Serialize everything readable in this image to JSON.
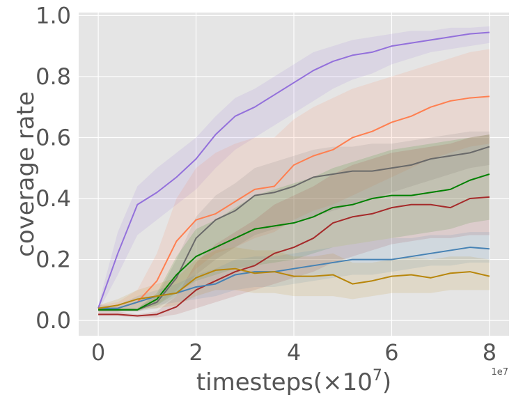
{
  "chart_data": {
    "type": "line",
    "title": "",
    "xlabel_main": "timesteps(×10",
    "xlabel_exp": "7",
    "xlabel_close": ")",
    "ylabel": "coverage rate",
    "x_offset_label": "1e7",
    "xlim": [
      -0.4,
      8.4
    ],
    "ylim": [
      -0.05,
      1.01
    ],
    "xticks": [
      0,
      2,
      4,
      6,
      8
    ],
    "xtick_labels": [
      "0",
      "2",
      "4",
      "6",
      "8"
    ],
    "yticks": [
      0.0,
      0.2,
      0.4,
      0.6,
      0.8,
      1.0
    ],
    "ytick_labels": [
      "0.0",
      "0.2",
      "0.4",
      "0.6",
      "0.8",
      "1.0"
    ],
    "grid": true,
    "legend": "none",
    "x": [
      0,
      0.4,
      0.8,
      1.2,
      1.6,
      2.0,
      2.4,
      2.8,
      3.2,
      3.6,
      4.0,
      4.4,
      4.8,
      5.2,
      5.6,
      6.0,
      6.4,
      6.8,
      7.2,
      7.6,
      8.0
    ],
    "series": [
      {
        "color": "#9370db",
        "values": [
          0.04,
          0.22,
          0.38,
          0.42,
          0.47,
          0.53,
          0.61,
          0.67,
          0.7,
          0.74,
          0.78,
          0.82,
          0.85,
          0.87,
          0.88,
          0.9,
          0.91,
          0.92,
          0.93,
          0.94,
          0.945
        ],
        "lower": [
          0.03,
          0.15,
          0.28,
          0.33,
          0.38,
          0.43,
          0.5,
          0.56,
          0.6,
          0.64,
          0.68,
          0.72,
          0.76,
          0.79,
          0.81,
          0.84,
          0.86,
          0.88,
          0.89,
          0.9,
          0.91
        ],
        "upper": [
          0.05,
          0.29,
          0.44,
          0.5,
          0.55,
          0.6,
          0.67,
          0.73,
          0.76,
          0.8,
          0.84,
          0.88,
          0.9,
          0.92,
          0.93,
          0.94,
          0.95,
          0.95,
          0.96,
          0.96,
          0.965
        ]
      },
      {
        "color": "#ff7f50",
        "values": [
          0.04,
          0.04,
          0.06,
          0.13,
          0.26,
          0.33,
          0.35,
          0.39,
          0.43,
          0.44,
          0.51,
          0.54,
          0.56,
          0.6,
          0.62,
          0.65,
          0.67,
          0.7,
          0.72,
          0.73,
          0.735
        ],
        "lower": [
          0.03,
          0.03,
          0.03,
          0.05,
          0.1,
          0.17,
          0.22,
          0.24,
          0.27,
          0.29,
          0.33,
          0.36,
          0.38,
          0.41,
          0.44,
          0.47,
          0.5,
          0.53,
          0.55,
          0.57,
          0.58
        ],
        "upper": [
          0.05,
          0.06,
          0.1,
          0.22,
          0.4,
          0.5,
          0.55,
          0.58,
          0.6,
          0.6,
          0.66,
          0.7,
          0.73,
          0.76,
          0.78,
          0.8,
          0.82,
          0.84,
          0.86,
          0.88,
          0.89
        ]
      },
      {
        "color": "#696969",
        "values": [
          0.035,
          0.035,
          0.035,
          0.06,
          0.14,
          0.27,
          0.33,
          0.36,
          0.41,
          0.42,
          0.44,
          0.47,
          0.48,
          0.49,
          0.49,
          0.5,
          0.51,
          0.53,
          0.54,
          0.55,
          0.57
        ],
        "lower": [
          0.03,
          0.03,
          0.03,
          0.04,
          0.08,
          0.15,
          0.2,
          0.24,
          0.28,
          0.3,
          0.32,
          0.34,
          0.36,
          0.38,
          0.4,
          0.42,
          0.44,
          0.46,
          0.48,
          0.5,
          0.51
        ],
        "upper": [
          0.04,
          0.04,
          0.04,
          0.08,
          0.2,
          0.34,
          0.41,
          0.45,
          0.5,
          0.52,
          0.54,
          0.56,
          0.57,
          0.57,
          0.58,
          0.58,
          0.59,
          0.6,
          0.61,
          0.62,
          0.62
        ]
      },
      {
        "color": "#008000",
        "values": [
          0.035,
          0.035,
          0.035,
          0.07,
          0.15,
          0.21,
          0.24,
          0.27,
          0.3,
          0.31,
          0.32,
          0.34,
          0.37,
          0.38,
          0.4,
          0.41,
          0.41,
          0.42,
          0.43,
          0.46,
          0.48
        ],
        "lower": [
          0.03,
          0.03,
          0.03,
          0.05,
          0.09,
          0.13,
          0.15,
          0.17,
          0.18,
          0.19,
          0.2,
          0.22,
          0.24,
          0.25,
          0.26,
          0.27,
          0.28,
          0.29,
          0.3,
          0.32,
          0.33
        ],
        "upper": [
          0.04,
          0.04,
          0.04,
          0.09,
          0.21,
          0.3,
          0.33,
          0.37,
          0.41,
          0.43,
          0.45,
          0.47,
          0.5,
          0.52,
          0.54,
          0.56,
          0.57,
          0.58,
          0.59,
          0.6,
          0.61
        ]
      },
      {
        "color": "#a52a2a",
        "values": [
          0.02,
          0.02,
          0.015,
          0.02,
          0.045,
          0.1,
          0.13,
          0.16,
          0.18,
          0.22,
          0.24,
          0.27,
          0.32,
          0.34,
          0.35,
          0.37,
          0.38,
          0.38,
          0.37,
          0.4,
          0.405
        ],
        "lower": [
          0.015,
          0.015,
          0.01,
          0.01,
          0.02,
          0.04,
          0.06,
          0.08,
          0.1,
          0.12,
          0.14,
          0.16,
          0.19,
          0.21,
          0.23,
          0.25,
          0.26,
          0.27,
          0.27,
          0.28,
          0.28
        ],
        "upper": [
          0.03,
          0.03,
          0.02,
          0.03,
          0.08,
          0.19,
          0.25,
          0.29,
          0.33,
          0.38,
          0.41,
          0.44,
          0.48,
          0.51,
          0.53,
          0.55,
          0.56,
          0.57,
          0.58,
          0.6,
          0.61
        ]
      },
      {
        "color": "#4682b4",
        "values": [
          0.04,
          0.04,
          0.06,
          0.08,
          0.09,
          0.11,
          0.12,
          0.15,
          0.16,
          0.16,
          0.17,
          0.18,
          0.19,
          0.2,
          0.2,
          0.2,
          0.21,
          0.22,
          0.23,
          0.24,
          0.235
        ],
        "lower": [
          0.03,
          0.03,
          0.04,
          0.05,
          0.06,
          0.07,
          0.08,
          0.1,
          0.11,
          0.11,
          0.12,
          0.13,
          0.14,
          0.15,
          0.15,
          0.16,
          0.17,
          0.18,
          0.18,
          0.19,
          0.19
        ],
        "upper": [
          0.05,
          0.05,
          0.08,
          0.1,
          0.12,
          0.15,
          0.17,
          0.2,
          0.21,
          0.21,
          0.22,
          0.23,
          0.24,
          0.25,
          0.26,
          0.27,
          0.27,
          0.28,
          0.28,
          0.29,
          0.29
        ]
      },
      {
        "color": "#b8860b",
        "values": [
          0.04,
          0.05,
          0.07,
          0.08,
          0.09,
          0.14,
          0.165,
          0.17,
          0.155,
          0.16,
          0.145,
          0.145,
          0.15,
          0.12,
          0.13,
          0.145,
          0.15,
          0.14,
          0.155,
          0.16,
          0.145
        ],
        "lower": [
          0.03,
          0.03,
          0.04,
          0.04,
          0.05,
          0.08,
          0.1,
          0.1,
          0.09,
          0.09,
          0.08,
          0.08,
          0.08,
          0.07,
          0.08,
          0.09,
          0.09,
          0.09,
          0.1,
          0.1,
          0.1
        ],
        "upper": [
          0.05,
          0.07,
          0.1,
          0.12,
          0.14,
          0.2,
          0.23,
          0.24,
          0.23,
          0.23,
          0.21,
          0.21,
          0.22,
          0.19,
          0.19,
          0.2,
          0.21,
          0.2,
          0.21,
          0.21,
          0.2
        ]
      }
    ]
  }
}
